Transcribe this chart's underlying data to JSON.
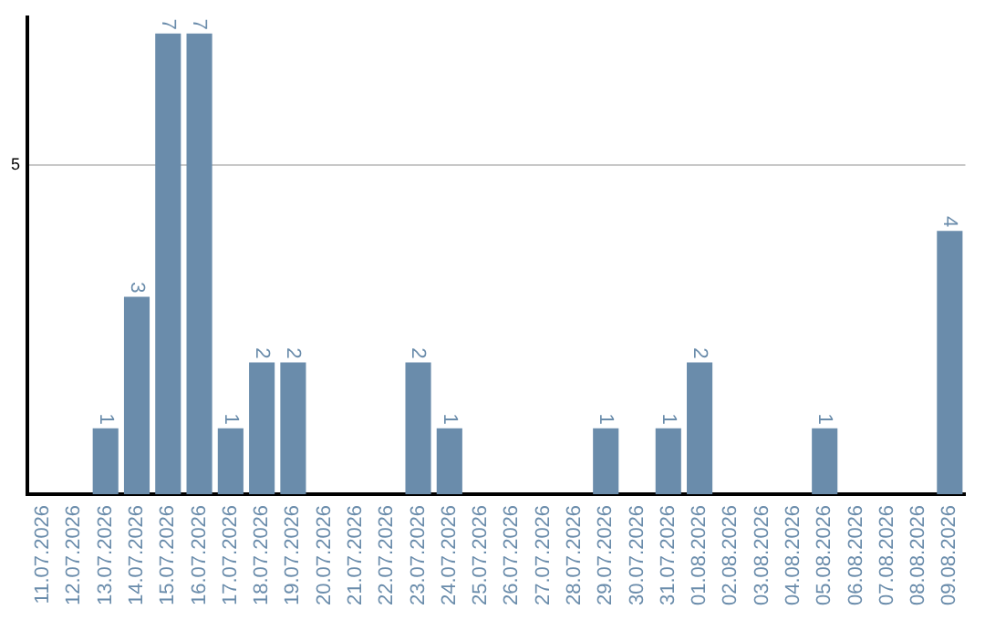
{
  "chart_data": {
    "type": "bar",
    "categories": [
      "11.07.2026",
      "12.07.2026",
      "13.07.2026",
      "14.07.2026",
      "15.07.2026",
      "16.07.2026",
      "17.07.2026",
      "18.07.2026",
      "19.07.2026",
      "20.07.2026",
      "21.07.2026",
      "22.07.2026",
      "23.07.2026",
      "24.07.2026",
      "25.07.2026",
      "26.07.2026",
      "27.07.2026",
      "28.07.2026",
      "29.07.2026",
      "30.07.2026",
      "31.07.2026",
      "01.08.2026",
      "02.08.2026",
      "03.08.2026",
      "04.08.2026",
      "05.08.2026",
      "06.08.2026",
      "07.08.2026",
      "08.08.2026",
      "09.08.2026"
    ],
    "values": [
      0,
      0,
      1,
      3,
      7,
      7,
      1,
      2,
      2,
      0,
      0,
      0,
      2,
      1,
      0,
      0,
      0,
      0,
      1,
      0,
      1,
      2,
      0,
      0,
      0,
      1,
      0,
      0,
      0,
      4
    ],
    "value_labels": [
      null,
      null,
      "1",
      "3",
      "7",
      "7",
      "1",
      "2",
      "2",
      null,
      null,
      null,
      "2",
      "1",
      null,
      null,
      null,
      null,
      "1",
      null,
      "1",
      "2",
      null,
      null,
      null,
      "1",
      null,
      null,
      null,
      "4"
    ],
    "color": "#6a8cab",
    "ylim": [
      0,
      7.25
    ],
    "yticks": [
      5
    ],
    "grid": "y",
    "legend": false
  }
}
